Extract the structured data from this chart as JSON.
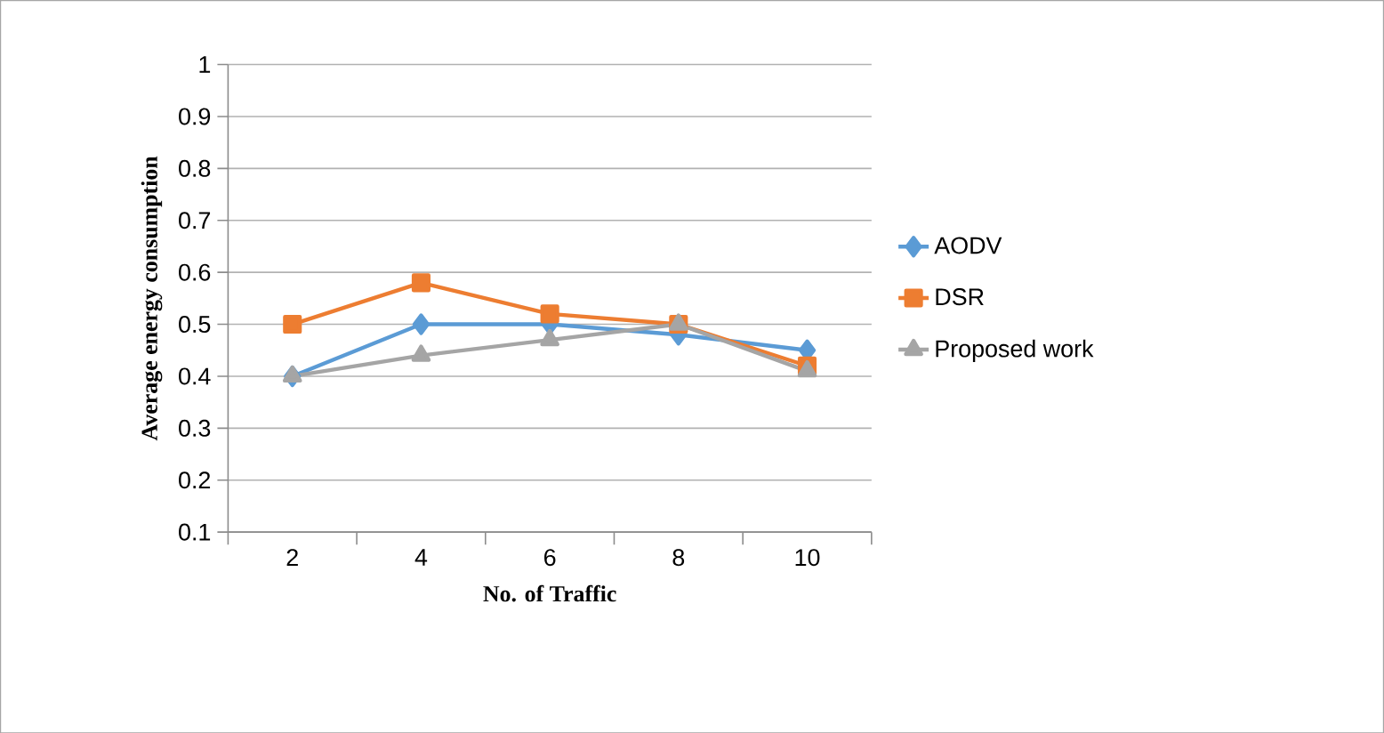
{
  "chart_data": {
    "type": "line",
    "xlabel": "No. of Traffic",
    "ylabel": "Average energy consumption",
    "categories": [
      "2",
      "4",
      "6",
      "8",
      "10"
    ],
    "series": [
      {
        "name": "AODV",
        "color": "#5b9bd5",
        "marker": "diamond",
        "values": [
          0.4,
          0.5,
          0.5,
          0.48,
          0.45
        ]
      },
      {
        "name": "DSR",
        "color": "#ed7d31",
        "marker": "square",
        "values": [
          0.5,
          0.58,
          0.52,
          0.5,
          0.42
        ]
      },
      {
        "name": "Proposed work",
        "color": "#a5a5a5",
        "marker": "triangle",
        "values": [
          0.4,
          0.44,
          0.47,
          0.5,
          0.41
        ]
      }
    ],
    "ylim": [
      0.1,
      1
    ],
    "yticks": [
      0.1,
      0.2,
      0.3,
      0.4,
      0.5,
      0.6,
      0.7,
      0.8,
      0.9,
      1
    ],
    "grid": "y",
    "legend": "right"
  }
}
